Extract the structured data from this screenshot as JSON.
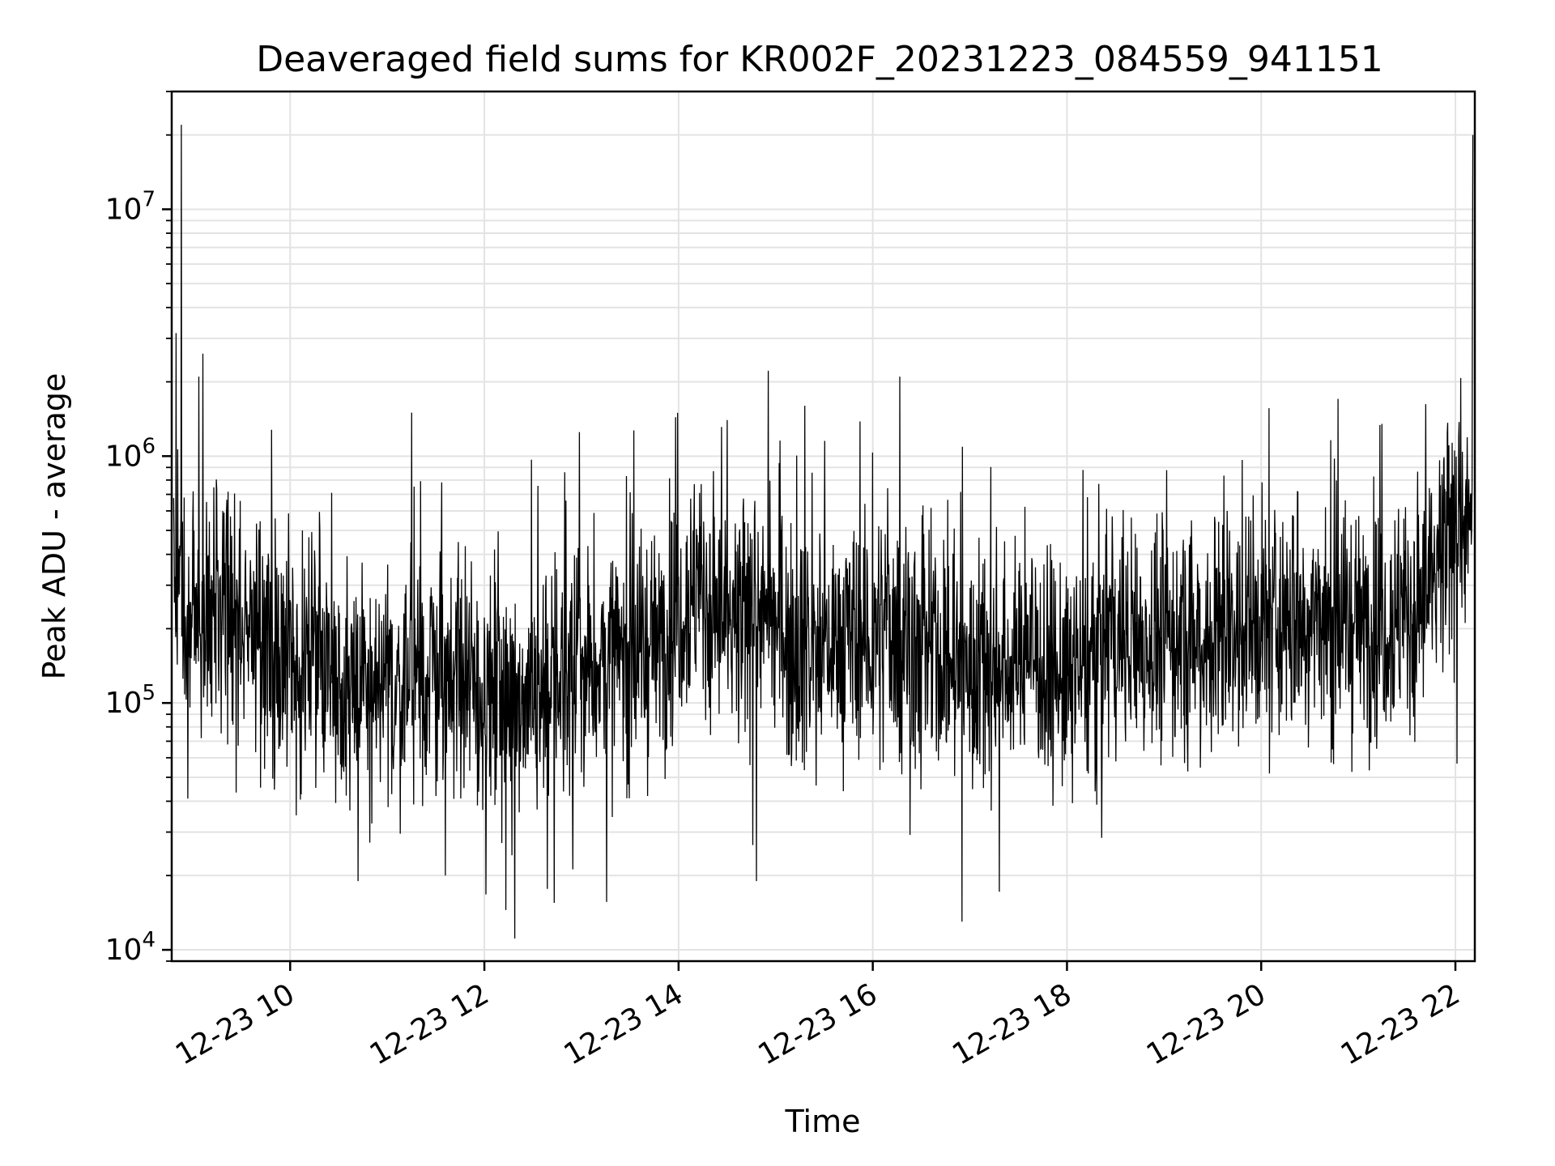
{
  "chart_data": {
    "type": "line",
    "title": "Deaveraged field sums for KR002F_20231223_084559_941151",
    "xlabel": "Time",
    "ylabel": "Peak ADU - average",
    "y_scale": "log",
    "ylim": [
      9000,
      30000000
    ],
    "x_range_hours": [
      8.78,
      22.2
    ],
    "x_ticks": [
      {
        "hour": 10,
        "label": "12-23 10"
      },
      {
        "hour": 12,
        "label": "12-23 12"
      },
      {
        "hour": 14,
        "label": "12-23 14"
      },
      {
        "hour": 16,
        "label": "12-23 16"
      },
      {
        "hour": 18,
        "label": "12-23 18"
      },
      {
        "hour": 20,
        "label": "12-23 20"
      },
      {
        "hour": 22,
        "label": "12-23 22"
      }
    ],
    "y_ticks": [
      {
        "value": 10000,
        "base": "10",
        "exp": "4"
      },
      {
        "value": 100000,
        "base": "10",
        "exp": "5"
      },
      {
        "value": 1000000,
        "base": "10",
        "exp": "6"
      },
      {
        "value": 10000000,
        "base": "10",
        "exp": "7"
      }
    ],
    "grid": true,
    "line_color": "#000000",
    "series": [
      {
        "x_hours": [
          8.8,
          9.0,
          9.2,
          9.4,
          9.6,
          9.8,
          10.0,
          10.2,
          10.4,
          10.6,
          10.8,
          11.0,
          11.2,
          11.4,
          11.6,
          11.8,
          12.0,
          12.2,
          12.4,
          12.6,
          12.8,
          13.0,
          13.2,
          13.4,
          13.6,
          13.8,
          14.0,
          14.2,
          14.4,
          14.6,
          14.8,
          15.0,
          15.2,
          15.4,
          15.6,
          15.8,
          16.0,
          16.2,
          16.4,
          16.6,
          16.8,
          17.0,
          17.2,
          17.4,
          17.6,
          17.8,
          18.0,
          18.2,
          18.4,
          18.6,
          18.8,
          19.0,
          19.2,
          19.4,
          19.6,
          19.8,
          20.0,
          20.2,
          20.4,
          20.6,
          20.8,
          21.0,
          21.2,
          21.4,
          21.6,
          21.8,
          22.0,
          22.2
        ],
        "median": [
          300000,
          250000,
          200000,
          220000,
          200000,
          170000,
          170000,
          160000,
          140000,
          120000,
          110000,
          110000,
          120000,
          130000,
          120000,
          110000,
          110000,
          105000,
          110000,
          120000,
          130000,
          140000,
          145000,
          150000,
          160000,
          180000,
          250000,
          300000,
          220000,
          180000,
          250000,
          200000,
          180000,
          170000,
          175000,
          180000,
          180000,
          200000,
          180000,
          160000,
          140000,
          140000,
          140000,
          140000,
          180000,
          130000,
          120000,
          140000,
          170000,
          170000,
          180000,
          180000,
          190000,
          180000,
          200000,
          200000,
          200000,
          210000,
          220000,
          220000,
          210000,
          210000,
          220000,
          230000,
          230000,
          300000,
          500000,
          550000
        ],
        "peaks": [
          {
            "hour": 8.88,
            "value": 22000000
          },
          {
            "hour": 9.1,
            "value": 2600000
          },
          {
            "hour": 9.06,
            "value": 2100000
          },
          {
            "hour": 11.25,
            "value": 1500000
          },
          {
            "hour": 14.5,
            "value": 1400000
          },
          {
            "hour": 15.3,
            "value": 1600000
          },
          {
            "hour": 16.28,
            "value": 2100000
          },
          {
            "hour": 22.18,
            "value": 20000000
          }
        ],
        "dips": [
          {
            "hour": 12.22,
            "value": 14500
          },
          {
            "hour": 12.72,
            "value": 15500
          },
          {
            "hour": 14.8,
            "value": 19000
          },
          {
            "hour": 16.92,
            "value": 13000
          },
          {
            "hour": 10.7,
            "value": 19000
          },
          {
            "hour": 11.6,
            "value": 20000
          }
        ]
      }
    ]
  }
}
